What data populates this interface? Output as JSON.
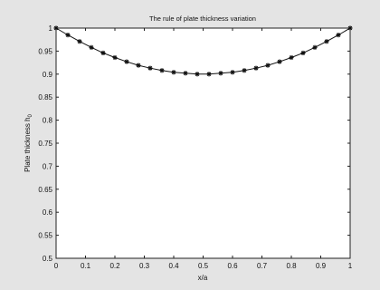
{
  "chart_data": {
    "type": "line",
    "title": "The rule of plate thickness variation",
    "xlabel": "x/a",
    "ylabel": "Plate thickness h",
    "ylabel_subscript": "0",
    "xlim": [
      0,
      1
    ],
    "ylim": [
      0.5,
      1
    ],
    "xticks": [
      "0",
      "0.1",
      "0.2",
      "0.3",
      "0.4",
      "0.5",
      "0.6",
      "0.7",
      "0.8",
      "0.9",
      "1"
    ],
    "yticks": [
      "0.5",
      "0.55",
      "0.6",
      "0.65",
      "0.7",
      "0.75",
      "0.8",
      "0.85",
      "0.9",
      "0.95",
      "1"
    ],
    "grid": false,
    "series": [
      {
        "marker": "star",
        "color": "#111111",
        "x": [
          0,
          0.04,
          0.08,
          0.12,
          0.16,
          0.2,
          0.24,
          0.28,
          0.32,
          0.36,
          0.4,
          0.44,
          0.48,
          0.52,
          0.56,
          0.6,
          0.64,
          0.68,
          0.72,
          0.76,
          0.8,
          0.84,
          0.88,
          0.92,
          0.96,
          1
        ],
        "y": [
          1,
          0.985,
          0.971,
          0.958,
          0.946,
          0.936,
          0.927,
          0.919,
          0.913,
          0.908,
          0.904,
          0.902,
          0.9,
          0.9,
          0.902,
          0.904,
          0.908,
          0.913,
          0.919,
          0.927,
          0.936,
          0.946,
          0.958,
          0.971,
          0.985,
          1
        ]
      }
    ]
  }
}
